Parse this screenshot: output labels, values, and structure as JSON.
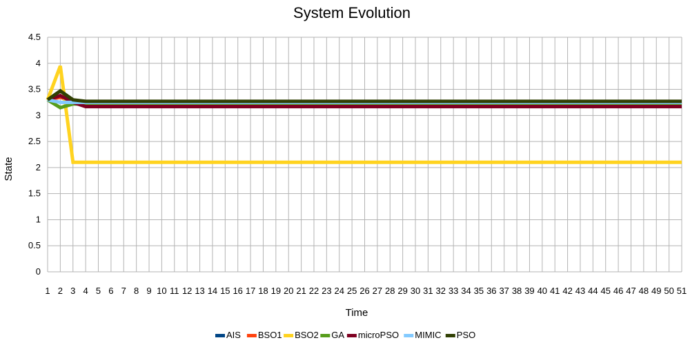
{
  "chart_data": {
    "type": "line",
    "title": "System Evolution",
    "xlabel": "Time",
    "ylabel": "State",
    "ylim": [
      0,
      4.5
    ],
    "yticks": [
      "0",
      "0.5",
      "1",
      "1.5",
      "2",
      "2.5",
      "3",
      "3.5",
      "4",
      "4.5"
    ],
    "grid": true,
    "legend_position": "bottom",
    "categories": [
      "1",
      "2",
      "3",
      "4",
      "5",
      "6",
      "7",
      "8",
      "9",
      "10",
      "11",
      "12",
      "13",
      "14",
      "15",
      "16",
      "17",
      "18",
      "19",
      "20",
      "21",
      "22",
      "23",
      "24",
      "25",
      "26",
      "27",
      "28",
      "29",
      "30",
      "31",
      "32",
      "33",
      "34",
      "35",
      "36",
      "37",
      "38",
      "39",
      "40",
      "41",
      "42",
      "43",
      "44",
      "45",
      "46",
      "47",
      "48",
      "49",
      "50",
      "51"
    ],
    "series": [
      {
        "name": "AIS",
        "color": "#004586",
        "start": [
          3.3,
          3.35,
          3.27
        ],
        "steady": 3.25
      },
      {
        "name": "BSO1",
        "color": "#ff420e",
        "start": [
          3.3,
          3.35,
          3.27
        ],
        "steady": 3.25
      },
      {
        "name": "BSO2",
        "color": "#ffd320",
        "start": [
          3.3,
          3.95,
          2.1
        ],
        "steady": 2.1
      },
      {
        "name": "GA",
        "color": "#579d1c",
        "start": [
          3.3,
          3.15,
          3.22
        ],
        "steady": 3.22
      },
      {
        "name": "microPSO",
        "color": "#7e0021",
        "start": [
          3.3,
          3.38,
          3.25
        ],
        "steady": 3.17
      },
      {
        "name": "MIMIC",
        "color": "#83caff",
        "start": [
          3.3,
          3.25,
          3.25
        ],
        "steady": 3.25
      },
      {
        "name": "PSO",
        "color": "#314004",
        "start": [
          3.3,
          3.47,
          3.3
        ],
        "steady": 3.27
      }
    ]
  }
}
